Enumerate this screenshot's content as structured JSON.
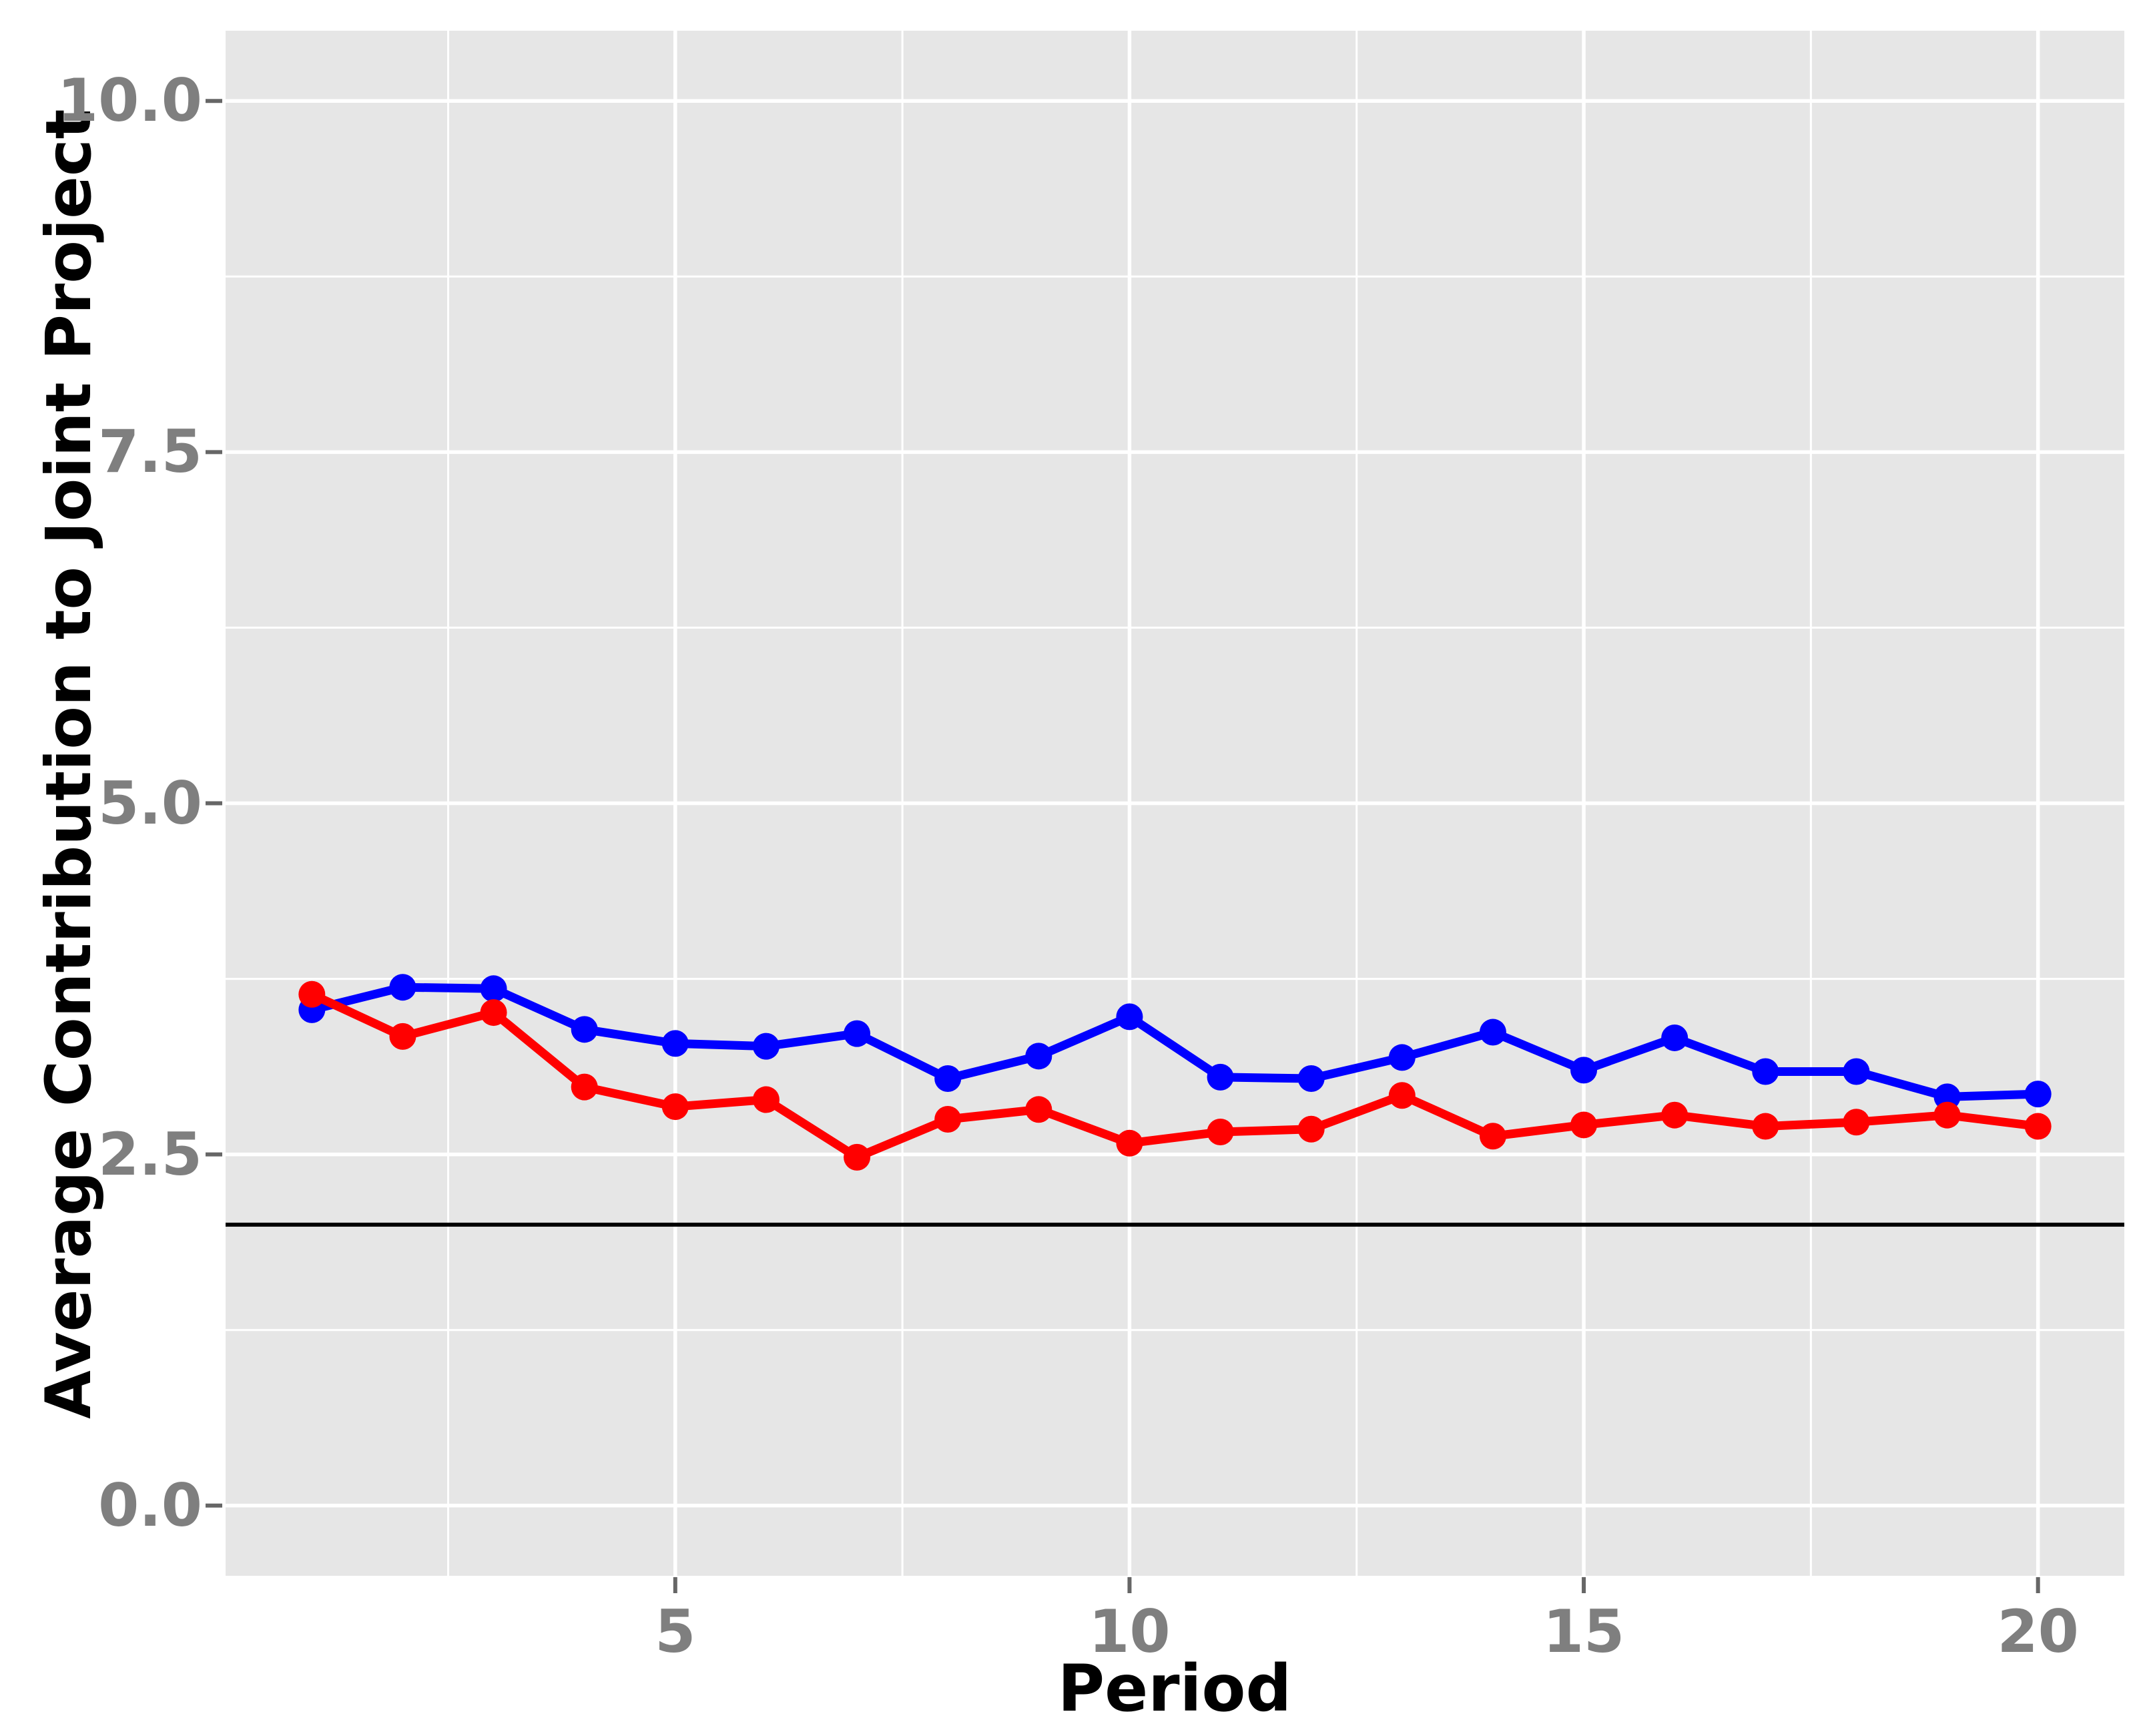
{
  "figure": {
    "background_color": "#ffffff",
    "panel_color": "#e6e6e6",
    "grid_color": "#ffffff",
    "tick_mark_color": "#666666",
    "tick_label_color": "#7f7f7f",
    "axis_title_color": "#000000"
  },
  "chart_data": {
    "type": "line",
    "title": "",
    "xlabel": "Period",
    "ylabel": "Average Contribution to Joint Project",
    "x": [
      1,
      2,
      3,
      4,
      5,
      6,
      7,
      8,
      9,
      10,
      11,
      12,
      13,
      14,
      15,
      16,
      17,
      18,
      19,
      20
    ],
    "series": [
      {
        "name": "blue-series",
        "color": "#0000ff",
        "values": [
          3.53,
          3.69,
          3.68,
          3.39,
          3.29,
          3.27,
          3.36,
          3.04,
          3.2,
          3.48,
          3.05,
          3.04,
          3.19,
          3.37,
          3.1,
          3.33,
          3.09,
          3.09,
          2.91,
          2.93
        ]
      },
      {
        "name": "red-series",
        "color": "#ff0000",
        "values": [
          3.64,
          3.34,
          3.51,
          2.98,
          2.84,
          2.89,
          2.48,
          2.75,
          2.82,
          2.58,
          2.66,
          2.68,
          2.92,
          2.63,
          2.71,
          2.78,
          2.7,
          2.73,
          2.78,
          2.7
        ]
      }
    ],
    "reference_line": {
      "y": 2.0,
      "color": "#000000"
    },
    "x_ticks": {
      "values": [
        5,
        10,
        15,
        20
      ],
      "labels": [
        "5",
        "10",
        "15",
        "20"
      ]
    },
    "y_ticks": {
      "values": [
        10.0,
        7.5,
        5.0,
        2.5,
        0.0
      ],
      "labels": [
        "10.0",
        "7.5",
        "5.0",
        "2.5",
        "0.0"
      ]
    },
    "x_minor_gridlines": [
      2.5,
      7.5,
      12.5,
      17.5
    ],
    "y_minor_gridlines": [
      1.25,
      3.75,
      6.25,
      8.75
    ],
    "xlim": [
      0.05,
      20.95
    ],
    "ylim": [
      -0.5,
      10.5
    ],
    "grid": "on",
    "legend": "none"
  }
}
